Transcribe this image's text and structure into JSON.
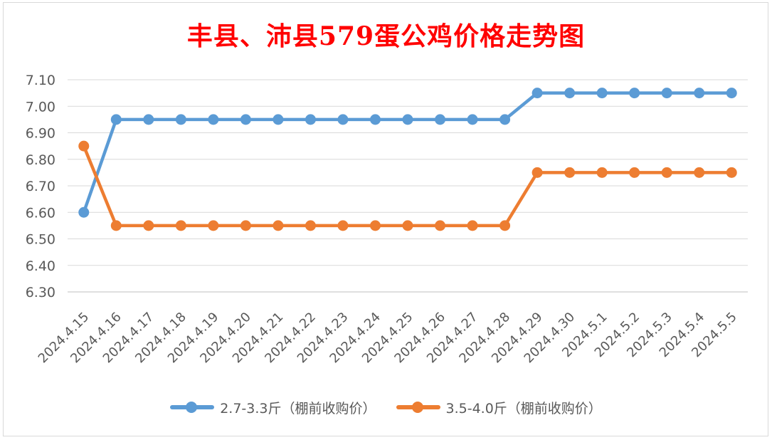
{
  "chart_data": {
    "type": "line",
    "title": "丰县、沛县579蛋公鸡价格走势图",
    "categories": [
      "2024.4.15",
      "2024.4.16",
      "2024.4.17",
      "2024.4.18",
      "2024.4.19",
      "2024.4.20",
      "2024.4.21",
      "2024.4.22",
      "2024.4.23",
      "2024.4.24",
      "2024.4.25",
      "2024.4.26",
      "2024.4.27",
      "2024.4.28",
      "2024.4.29",
      "2024.4.30",
      "2024.5.1",
      "2024.5.2",
      "2024.5.3",
      "2024.5.4",
      "2024.5.5"
    ],
    "ylim": [
      6.3,
      7.1
    ],
    "yticks": [
      "6.30",
      "6.40",
      "6.50",
      "6.60",
      "6.70",
      "6.80",
      "6.90",
      "7.00",
      "7.10"
    ],
    "grid": true,
    "legend_position": "bottom",
    "series": [
      {
        "name": "2.7-3.3斤（棚前收购价）",
        "color": "#5b9bd5",
        "values": [
          6.6,
          6.95,
          6.95,
          6.95,
          6.95,
          6.95,
          6.95,
          6.95,
          6.95,
          6.95,
          6.95,
          6.95,
          6.95,
          6.95,
          7.05,
          7.05,
          7.05,
          7.05,
          7.05,
          7.05,
          7.05
        ]
      },
      {
        "name": "3.5-4.0斤（棚前收购价）",
        "color": "#ed7d31",
        "values": [
          6.85,
          6.55,
          6.55,
          6.55,
          6.55,
          6.55,
          6.55,
          6.55,
          6.55,
          6.55,
          6.55,
          6.55,
          6.55,
          6.55,
          6.75,
          6.75,
          6.75,
          6.75,
          6.75,
          6.75,
          6.75
        ]
      }
    ]
  }
}
